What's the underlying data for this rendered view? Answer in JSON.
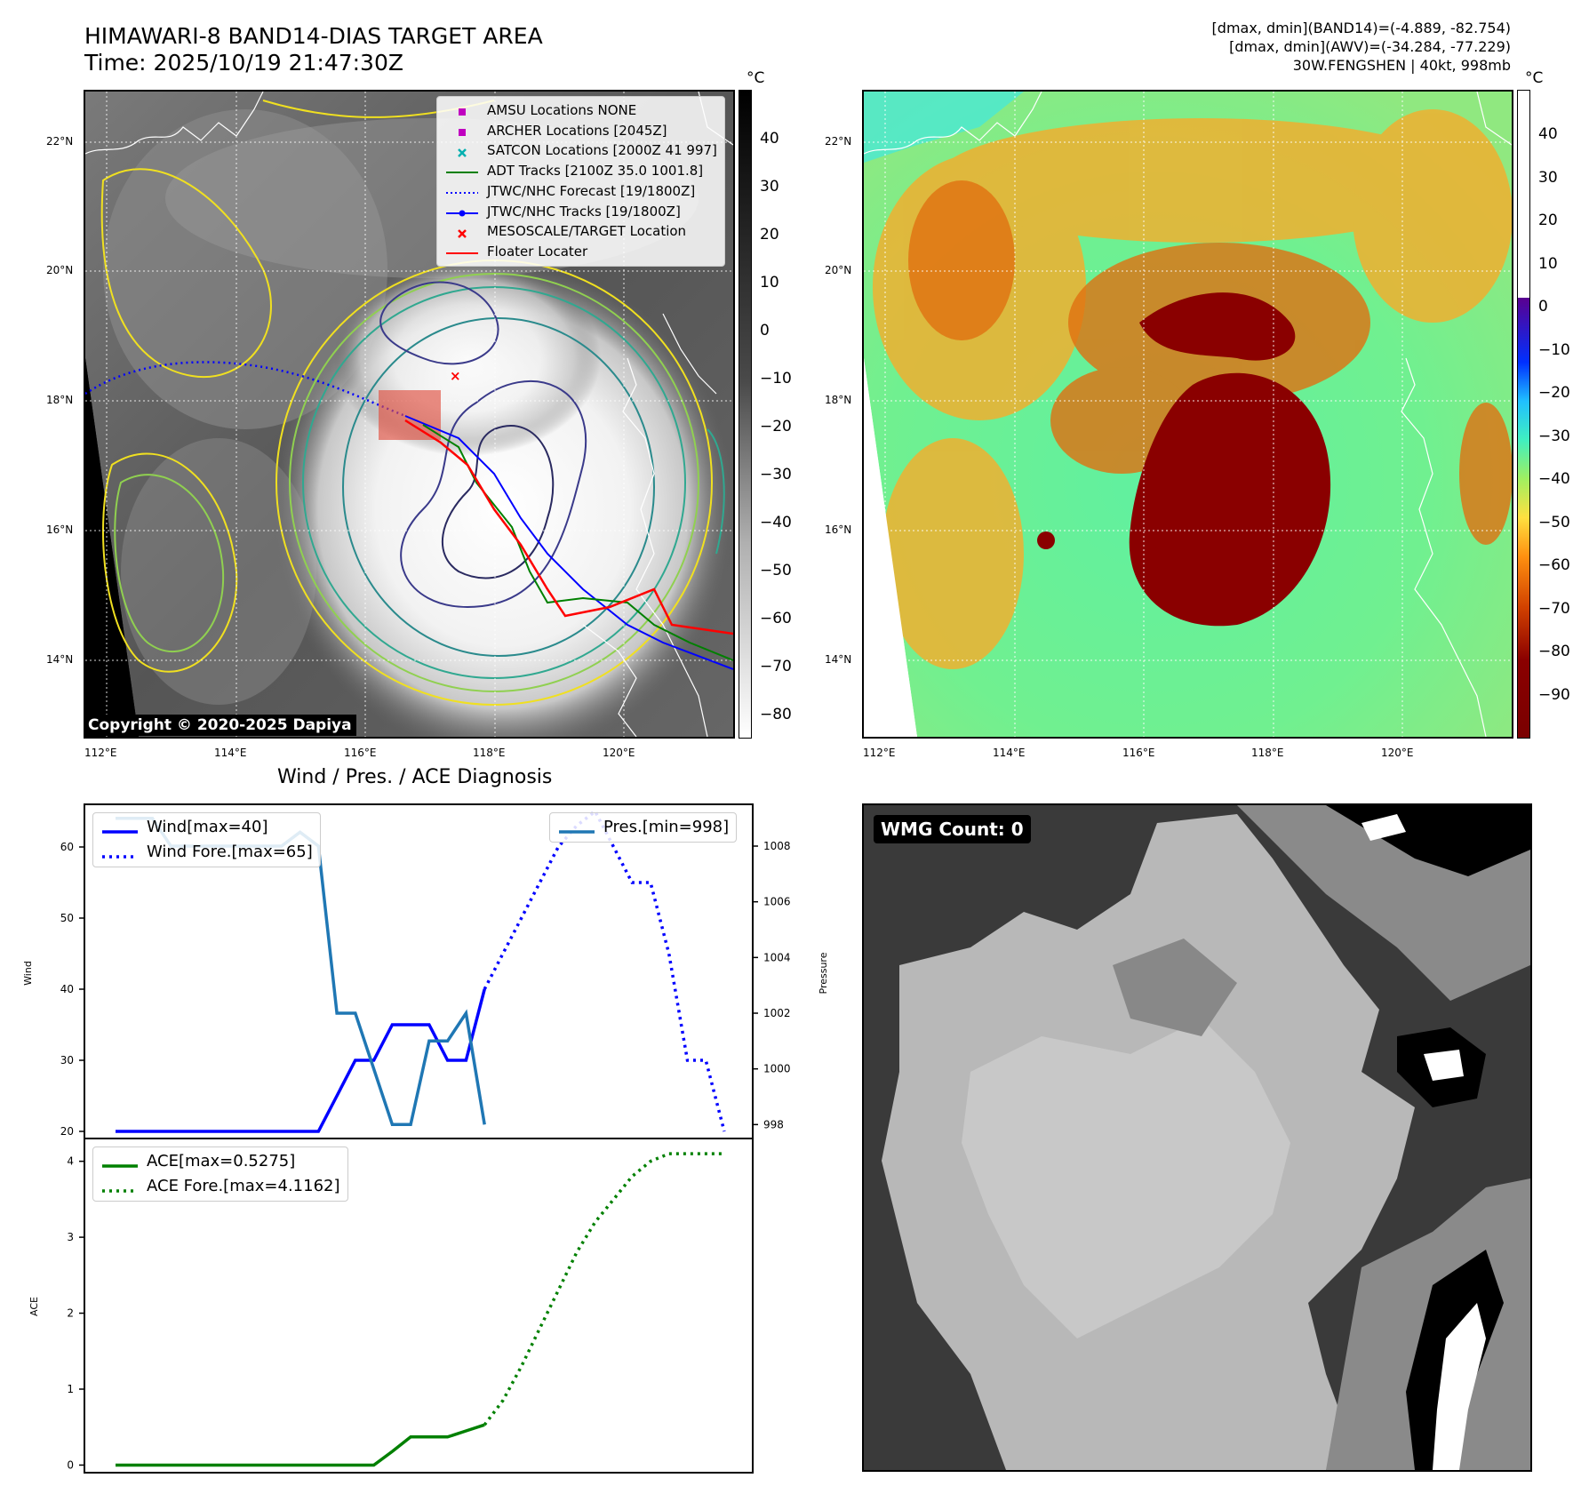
{
  "header": {
    "title_line1": "HIMAWARI-8 BAND14-DIAS TARGET AREA",
    "title_line2": "Time: 2025/10/19 21:47:30Z",
    "info_line1": "[dmax, dmin](BAND14)=(-4.889, -82.754)",
    "info_line2": "[dmax, dmin](AWV)=(-34.284, -77.229)",
    "info_line3": "30W.FENGSHEN | 40kt, 998mb"
  },
  "maps": {
    "lat_labels": [
      "22°N",
      "20°N",
      "18°N",
      "16°N",
      "14°N"
    ],
    "lon_labels": [
      "112°E",
      "114°E",
      "116°E",
      "118°E",
      "120°E"
    ],
    "unit": "°C",
    "colorbar_left_ticks": [
      "40",
      "30",
      "20",
      "10",
      "0",
      "−10",
      "−20",
      "−30",
      "−40",
      "−50",
      "−60",
      "−70",
      "−80"
    ],
    "colorbar_right_ticks": [
      "40",
      "30",
      "20",
      "10",
      "0",
      "−10",
      "−20",
      "−30",
      "−40",
      "−50",
      "−60",
      "−70",
      "−80",
      "−90"
    ],
    "copyright": "Copyright © 2020-2025 Dapiya",
    "legend": [
      {
        "label": "AMSU Locations NONE",
        "color": "#c000c0",
        "symbol": "square"
      },
      {
        "label": "ARCHER Locations [2045Z]",
        "color": "#c000c0",
        "symbol": "square"
      },
      {
        "label": "SATCON Locations [2000Z 41 997]",
        "color": "#00b0b0",
        "symbol": "x"
      },
      {
        "label": "ADT Tracks [2100Z 35.0 1001.8]",
        "color": "#008000",
        "symbol": "line"
      },
      {
        "label": "JTWC/NHC Forecast [19/1800Z]",
        "color": "#0000ff",
        "symbol": "dotted"
      },
      {
        "label": "JTWC/NHC Tracks [19/1800Z]",
        "color": "#0000ff",
        "symbol": "line-dot"
      },
      {
        "label": "MESOSCALE/TARGET Location",
        "color": "#ff0000",
        "symbol": "x"
      },
      {
        "label": "Floater Locater",
        "color": "#ff0000",
        "symbol": "line"
      }
    ]
  },
  "diagnosis": {
    "title": "Wind / Pres. / ACE Diagnosis",
    "wind_legend": [
      "Wind[max=40]",
      "Wind Fore.[max=65]"
    ],
    "pres_legend": "Pres.[min=998]",
    "ace_legend": [
      "ACE[max=0.5275]",
      "ACE Fore.[max=4.1162]"
    ],
    "ylabel_wind": "Wind",
    "ylabel_pres": "Pressure",
    "ylabel_ace": "ACE"
  },
  "wmg": {
    "label": "WMG Count: 0"
  },
  "chart_data": [
    {
      "type": "line",
      "ylabel": "Wind",
      "ylim": [
        19,
        66
      ],
      "y_ticks": [
        20,
        30,
        40,
        50,
        60
      ],
      "x": [
        0,
        1,
        2,
        3,
        4,
        5,
        6,
        7,
        8,
        9,
        10,
        11,
        12,
        13,
        14,
        15,
        16,
        17,
        18,
        19,
        20,
        21,
        22,
        23,
        24,
        25,
        26,
        27,
        28,
        29,
        30,
        31
      ],
      "series": [
        {
          "name": "Wind[max=40]",
          "color": "#0000ff",
          "style": "solid",
          "points": [
            [
              0,
              20
            ],
            [
              1,
              20
            ],
            [
              2,
              20
            ],
            [
              3,
              20
            ],
            [
              4,
              20
            ],
            [
              5,
              20
            ],
            [
              6,
              20
            ],
            [
              7,
              20
            ],
            [
              8,
              20
            ],
            [
              9,
              20
            ],
            [
              10,
              20
            ],
            [
              11,
              20
            ],
            [
              12,
              25
            ],
            [
              13,
              30
            ],
            [
              14,
              30
            ],
            [
              15,
              35
            ],
            [
              16,
              35
            ],
            [
              17,
              35
            ],
            [
              18,
              30
            ],
            [
              19,
              30
            ],
            [
              20,
              40
            ]
          ]
        },
        {
          "name": "Wind Fore.[max=65]",
          "color": "#0000ff",
          "style": "dotted",
          "points": [
            [
              20,
              40
            ],
            [
              21,
              45
            ],
            [
              22,
              50
            ],
            [
              23,
              55
            ],
            [
              24,
              60
            ],
            [
              25,
              63
            ],
            [
              26,
              65
            ],
            [
              27,
              60
            ],
            [
              28,
              55
            ],
            [
              29,
              55
            ],
            [
              30,
              45
            ],
            [
              31,
              30
            ],
            [
              32,
              30
            ],
            [
              33,
              20
            ]
          ]
        }
      ]
    },
    {
      "type": "line",
      "ylabel": "Pressure",
      "ylim": [
        997.5,
        1009.5
      ],
      "y_ticks": [
        998,
        1000,
        1002,
        1004,
        1006,
        1008
      ],
      "series": [
        {
          "name": "Pres.[min=998]",
          "color": "#1f77b4",
          "style": "solid",
          "points": [
            [
              0,
              1009
            ],
            [
              1,
              1009
            ],
            [
              2,
              1009
            ],
            [
              3,
              1008
            ],
            [
              4,
              1008
            ],
            [
              5,
              1008
            ],
            [
              6,
              1008
            ],
            [
              7,
              1008
            ],
            [
              8,
              1008
            ],
            [
              9,
              1008
            ],
            [
              10,
              1008.5
            ],
            [
              11,
              1008
            ],
            [
              12,
              1002
            ],
            [
              13,
              1002
            ],
            [
              14,
              1000
            ],
            [
              15,
              998
            ],
            [
              16,
              998
            ],
            [
              17,
              1001
            ],
            [
              18,
              1001
            ],
            [
              19,
              1002
            ],
            [
              20,
              998
            ]
          ]
        }
      ]
    },
    {
      "type": "line",
      "ylabel": "ACE",
      "ylim": [
        -0.1,
        4.3
      ],
      "y_ticks": [
        0,
        1,
        2,
        3,
        4
      ],
      "series": [
        {
          "name": "ACE[max=0.5275]",
          "color": "#008000",
          "style": "solid",
          "points": [
            [
              0,
              0
            ],
            [
              1,
              0
            ],
            [
              2,
              0
            ],
            [
              3,
              0
            ],
            [
              4,
              0
            ],
            [
              5,
              0
            ],
            [
              6,
              0
            ],
            [
              7,
              0
            ],
            [
              8,
              0
            ],
            [
              9,
              0
            ],
            [
              10,
              0
            ],
            [
              11,
              0
            ],
            [
              12,
              0
            ],
            [
              13,
              0
            ],
            [
              14,
              0
            ],
            [
              15,
              0.18
            ],
            [
              16,
              0.37
            ],
            [
              17,
              0.37
            ],
            [
              18,
              0.37
            ],
            [
              19,
              0.45
            ],
            [
              20,
              0.53
            ]
          ]
        },
        {
          "name": "ACE Fore.[max=4.1162]",
          "color": "#008000",
          "style": "dotted",
          "points": [
            [
              20,
              0.53
            ],
            [
              21,
              0.85
            ],
            [
              22,
              1.3
            ],
            [
              23,
              1.8
            ],
            [
              24,
              2.3
            ],
            [
              25,
              2.8
            ],
            [
              26,
              3.2
            ],
            [
              27,
              3.5
            ],
            [
              28,
              3.8
            ],
            [
              29,
              4.0
            ],
            [
              30,
              4.1
            ],
            [
              31,
              4.1
            ],
            [
              32,
              4.1
            ],
            [
              33,
              4.1
            ]
          ]
        }
      ]
    }
  ]
}
